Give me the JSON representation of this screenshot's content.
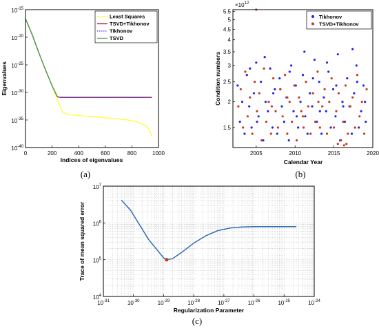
{
  "chart_data": [
    {
      "panel": "a",
      "caption": "(a)",
      "type": "line",
      "xlabel": "Indices of eigenvalues",
      "ylabel": "Eigenvalues",
      "xlim": [
        0,
        1000
      ],
      "ylim_exp": [
        -40,
        -15
      ],
      "yscale": "log",
      "xticks": [
        "0",
        "200",
        "400",
        "600",
        "800",
        "1000"
      ],
      "yticks": [
        {
          "exp": -15,
          "label": "10",
          "sup": "-15"
        },
        {
          "exp": -20,
          "label": "10",
          "sup": "-20"
        },
        {
          "exp": -25,
          "label": "10",
          "sup": "-25"
        },
        {
          "exp": -30,
          "label": "10",
          "sup": "-30"
        },
        {
          "exp": -35,
          "label": "10",
          "sup": "-35"
        },
        {
          "exp": -40,
          "label": "10",
          "sup": "-40"
        }
      ],
      "legend_position": "top-right",
      "series": [
        {
          "name": "Least Squares",
          "color": "#ffff33",
          "style": "solid",
          "x": [
            1,
            50,
            100,
            150,
            200,
            250,
            280,
            320,
            400,
            500,
            600,
            700,
            800,
            850,
            900,
            930,
            950
          ],
          "log10_y": [
            -16.7,
            -19.5,
            -22.8,
            -25.9,
            -28.8,
            -32.0,
            -33.6,
            -34.0,
            -34.2,
            -34.4,
            -34.6,
            -34.8,
            -35.1,
            -35.4,
            -36.0,
            -36.7,
            -38.0
          ]
        },
        {
          "name": "TSVD+Tikhonov",
          "color": "#a0153e",
          "style": "solid",
          "x": [
            1,
            50,
            100,
            150,
            200,
            240,
            260,
            400,
            600,
            800,
            950
          ],
          "log10_y": [
            -16.7,
            -19.5,
            -22.8,
            -25.9,
            -28.8,
            -30.8,
            -30.9,
            -30.9,
            -30.9,
            -30.9,
            -30.9
          ]
        },
        {
          "name": "Tikhonov",
          "color": "#4b3bd6",
          "style": "dotted",
          "x": [
            1,
            50,
            100,
            150,
            200,
            240,
            260,
            400,
            600,
            800,
            950
          ],
          "log10_y": [
            -16.7,
            -19.5,
            -22.8,
            -25.9,
            -28.8,
            -30.8,
            -30.9,
            -30.9,
            -30.9,
            -30.9,
            -30.9
          ]
        },
        {
          "name": "TSVD",
          "color": "#4da34a",
          "style": "solid",
          "x": [
            1,
            50,
            100,
            150,
            200,
            240
          ],
          "log10_y": [
            -16.7,
            -19.5,
            -22.8,
            -25.9,
            -28.8,
            -30.8
          ]
        }
      ]
    },
    {
      "panel": "b",
      "caption": "(b)",
      "type": "scatter",
      "xlabel": "Calendar Year",
      "ylabel": "Condition numbers",
      "xlim": [
        2002,
        2020
      ],
      "ylim": [
        1.2,
        5.6
      ],
      "yscale": "log",
      "y_multiplier": "×10",
      "y_multiplier_sup": "12",
      "xticks": [
        "2005",
        "2010",
        "2015",
        "2020"
      ],
      "xtick_values": [
        2005,
        2010,
        2015,
        2020
      ],
      "yticks": [
        "1.5",
        "2",
        "2.5",
        "3",
        "3.5",
        "4",
        "4.5",
        "5",
        "5.5"
      ],
      "ytick_values": [
        1.5,
        2,
        2.5,
        3,
        3.5,
        4,
        4.5,
        5,
        5.5
      ],
      "legend_position": "top-right",
      "series": [
        {
          "name": "Tikhonov",
          "color": "#2323e6",
          "x": [
            2002.6,
            2002.9,
            2003.2,
            2003.5,
            2003.8,
            2004.1,
            2004.4,
            2004.7,
            2005.0,
            2005.3,
            2005.6,
            2005.9,
            2006.2,
            2006.5,
            2006.8,
            2007.1,
            2007.4,
            2007.7,
            2008.0,
            2008.3,
            2008.6,
            2008.9,
            2009.2,
            2009.5,
            2009.8,
            2010.1,
            2010.4,
            2010.7,
            2011.0,
            2011.3,
            2011.6,
            2011.9,
            2012.2,
            2012.5,
            2012.8,
            2013.1,
            2013.4,
            2013.7,
            2014.0,
            2014.3,
            2014.6,
            2014.9,
            2015.2,
            2015.5,
            2015.8,
            2016.1,
            2016.4,
            2016.7,
            2017.0,
            2017.3,
            2017.6,
            2017.9,
            2018.2,
            2018.5,
            2018.8,
            2019.1,
            2004.2,
            2006.1,
            2008.1,
            2010.2,
            2012.3,
            2014.1,
            2016.2,
            2018.0,
            2005.1,
            2007.2,
            2009.3,
            2011.2,
            2013.2,
            2015.3,
            2017.4,
            2019.0
          ],
          "y": [
            2.4,
            1.6,
            2.0,
            1.4,
            2.7,
            1.9,
            1.5,
            2.2,
            3.1,
            1.7,
            2.5,
            1.3,
            2.0,
            1.8,
            2.9,
            1.5,
            2.3,
            1.4,
            2.6,
            1.9,
            1.6,
            2.1,
            1.3,
            3.0,
            1.8,
            2.4,
            1.5,
            2.0,
            2.7,
            1.7,
            1.4,
            2.2,
            1.9,
            3.2,
            1.6,
            2.5,
            1.4,
            2.1,
            1.8,
            2.8,
            1.5,
            2.3,
            1.7,
            3.4,
            1.3,
            2.0,
            1.6,
            2.6,
            1.9,
            1.4,
            2.2,
            3.0,
            1.5,
            1.8,
            2.4,
            1.6,
            2.9,
            3.3,
            2.3,
            1.7,
            2.6,
            3.1,
            1.9,
            2.5,
            1.6,
            2.2,
            2.8,
            3.5,
            1.8,
            2.4,
            3.6,
            2.0
          ]
        },
        {
          "name": "TSVD+Tikhonov",
          "color": "#c8361c",
          "x": [
            2002.7,
            2003.0,
            2003.3,
            2003.6,
            2003.9,
            2004.2,
            2004.5,
            2004.8,
            2005.1,
            2005.4,
            2005.7,
            2006.0,
            2006.3,
            2006.6,
            2006.9,
            2007.2,
            2007.5,
            2007.8,
            2008.1,
            2008.4,
            2008.7,
            2009.0,
            2009.3,
            2009.6,
            2009.9,
            2010.2,
            2010.5,
            2010.8,
            2011.1,
            2011.4,
            2011.7,
            2012.0,
            2012.3,
            2012.6,
            2012.9,
            2013.2,
            2013.5,
            2013.8,
            2014.1,
            2014.4,
            2014.7,
            2015.0,
            2015.3,
            2015.6,
            2015.9,
            2016.2,
            2016.5,
            2016.8,
            2017.1,
            2017.4,
            2017.7,
            2018.0,
            2018.3,
            2018.6,
            2018.9,
            2019.2,
            2005.0,
            2007.0,
            2009.0,
            2011.0,
            2013.0,
            2015.5,
            2016.3,
            2016.6
          ],
          "y": [
            1.9,
            2.3,
            1.5,
            2.8,
            1.7,
            2.1,
            1.4,
            2.5,
            1.8,
            2.2,
            1.3,
            2.9,
            1.6,
            2.0,
            1.4,
            2.6,
            1.8,
            1.5,
            2.3,
            1.7,
            2.7,
            1.4,
            2.0,
            1.6,
            2.4,
            1.3,
            2.1,
            1.8,
            1.5,
            2.5,
            1.9,
            1.4,
            2.2,
            1.6,
            2.8,
            1.5,
            1.9,
            2.3,
            1.4,
            2.0,
            2.6,
            1.5,
            1.8,
            2.2,
            1.3,
            1.6,
            2.4,
            1.4,
            1.9,
            2.1,
            1.5,
            2.7,
            1.7,
            2.0,
            1.4,
            2.3,
            5.6,
            1.9,
            2.1,
            1.7,
            2.0,
            1.25,
            1.23,
            1.25
          ]
        }
      ]
    },
    {
      "panel": "c",
      "caption": "(c)",
      "type": "line",
      "xlabel": "Regularization Parameter",
      "ylabel": "Trace of mean squared error",
      "xscale": "log",
      "yscale": "log",
      "xlim_exp": [
        -31,
        -24
      ],
      "ylim_exp": [
        4,
        7
      ],
      "grid": true,
      "xticks": [
        {
          "exp": -31,
          "label": "10",
          "sup": "-31"
        },
        {
          "exp": -30,
          "label": "10",
          "sup": "-30"
        },
        {
          "exp": -29,
          "label": "10",
          "sup": "-29"
        },
        {
          "exp": -28,
          "label": "10",
          "sup": "-28"
        },
        {
          "exp": -27,
          "label": "10",
          "sup": "-27"
        },
        {
          "exp": -26,
          "label": "10",
          "sup": "-26"
        },
        {
          "exp": -25,
          "label": "10",
          "sup": "-25"
        },
        {
          "exp": -24,
          "label": "10",
          "sup": "-24"
        }
      ],
      "yticks": [
        {
          "exp": 4,
          "label": "10",
          "sup": "4"
        },
        {
          "exp": 5,
          "label": "10",
          "sup": "5"
        },
        {
          "exp": 6,
          "label": "10",
          "sup": "6"
        },
        {
          "exp": 7,
          "label": "10",
          "sup": "7"
        }
      ],
      "series": [
        {
          "color": "#2f6db3",
          "log10_x": [
            -30.4,
            -30.1,
            -29.8,
            -29.5,
            -29.2,
            -29.0,
            -28.9,
            -28.7,
            -28.4,
            -28.0,
            -27.6,
            -27.2,
            -26.8,
            -26.4,
            -26.0,
            -25.6,
            -25.2,
            -24.6
          ],
          "log10_y": [
            6.62,
            6.35,
            5.95,
            5.55,
            5.25,
            5.05,
            5.0,
            5.03,
            5.2,
            5.45,
            5.65,
            5.79,
            5.86,
            5.89,
            5.9,
            5.9,
            5.9,
            5.9
          ]
        }
      ],
      "marker": {
        "log10_x": -28.9,
        "log10_y": 5.0,
        "color": "#c8361c"
      }
    }
  ]
}
